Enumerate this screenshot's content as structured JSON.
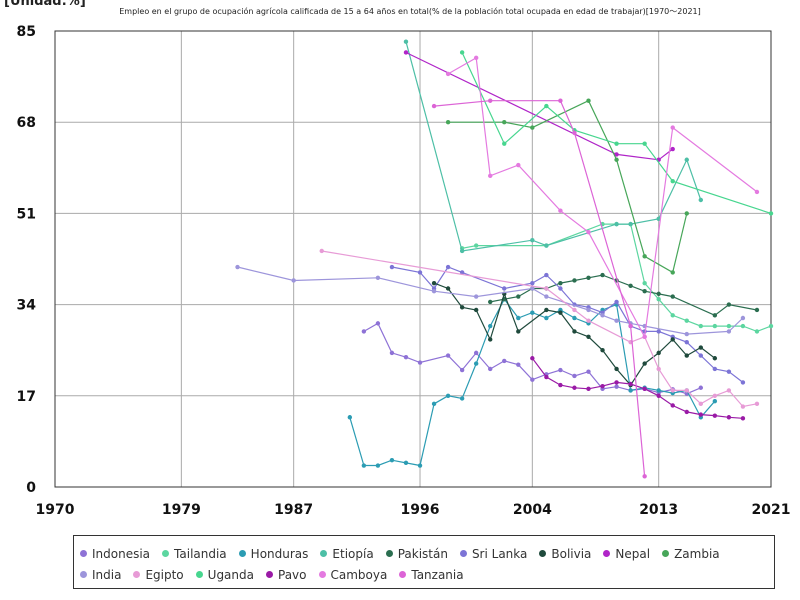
{
  "unit_label": "[Unidad:%]",
  "chart_data": {
    "type": "line",
    "title": "Empleo en el grupo de ocupación agrícola calificada de 15 a 64 años en total(% de la población total ocupada en edad de trabajar)[1970～2021]",
    "xlim": [
      1970,
      2021
    ],
    "ylim": [
      0,
      85
    ],
    "x_ticks": [
      "1970",
      "1979",
      "1987",
      "1996",
      "2004",
      "2013",
      "2021"
    ],
    "y_ticks": [
      "0",
      "17",
      "34",
      "51",
      "68",
      "85"
    ],
    "legend_position": "bottom",
    "grid": true,
    "series": [
      {
        "name": "Indonesia",
        "color": "#8e72d6",
        "points": [
          [
            1992,
            29
          ],
          [
            1993,
            30.5
          ],
          [
            1994,
            25
          ],
          [
            1995,
            24.2
          ],
          [
            1996,
            23.2
          ],
          [
            1998,
            24.5
          ],
          [
            1999,
            21.8
          ],
          [
            2000,
            25
          ],
          [
            2001,
            22
          ],
          [
            2002,
            23.5
          ],
          [
            2003,
            22.8
          ],
          [
            2004,
            20
          ],
          [
            2005,
            21
          ],
          [
            2006,
            21.8
          ],
          [
            2007,
            20.7
          ],
          [
            2008,
            21.5
          ],
          [
            2009,
            18.3
          ],
          [
            2010,
            18.7
          ],
          [
            2011,
            18
          ],
          [
            2012,
            18.3
          ],
          [
            2013,
            17.6
          ],
          [
            2014,
            18.2
          ],
          [
            2015,
            17.4
          ],
          [
            2016,
            18.5
          ]
        ]
      },
      {
        "name": "Tailandia",
        "color": "#5cd6a0",
        "points": [
          [
            1999,
            44.5
          ],
          [
            2000,
            45
          ],
          [
            2005,
            45
          ],
          [
            2009,
            49
          ],
          [
            2010,
            49
          ],
          [
            2011,
            49
          ],
          [
            2012,
            38
          ],
          [
            2013,
            35
          ],
          [
            2014,
            32
          ],
          [
            2015,
            31
          ],
          [
            2016,
            30
          ],
          [
            2017,
            30
          ],
          [
            2018,
            30
          ],
          [
            2019,
            30
          ],
          [
            2020,
            29
          ],
          [
            2021,
            30
          ]
        ]
      },
      {
        "name": "Honduras",
        "color": "#2b9cb3",
        "points": [
          [
            1991,
            13
          ],
          [
            1992,
            4
          ],
          [
            1993,
            4
          ],
          [
            1994,
            5
          ],
          [
            1995,
            4.5
          ],
          [
            1996,
            4
          ],
          [
            1997,
            15.5
          ],
          [
            1998,
            17
          ],
          [
            1999,
            16.5
          ],
          [
            2000,
            23
          ],
          [
            2001,
            30
          ],
          [
            2002,
            35
          ],
          [
            2003,
            31.5
          ],
          [
            2004,
            32.5
          ],
          [
            2005,
            31.5
          ],
          [
            2006,
            33
          ],
          [
            2007,
            31.5
          ],
          [
            2008,
            30.5
          ],
          [
            2009,
            33
          ],
          [
            2010,
            34
          ],
          [
            2011,
            18
          ],
          [
            2012,
            18.5
          ],
          [
            2013,
            18
          ],
          [
            2014,
            17.5
          ],
          [
            2015,
            18
          ],
          [
            2016,
            13
          ],
          [
            2017,
            16
          ]
        ]
      },
      {
        "name": "Etiopía",
        "color": "#4dbfa6",
        "points": [
          [
            1995,
            83
          ],
          [
            1999,
            44
          ],
          [
            2004,
            46
          ],
          [
            2005,
            45
          ],
          [
            2010,
            49
          ],
          [
            2011,
            49
          ],
          [
            2013,
            50
          ],
          [
            2015,
            61
          ],
          [
            2016,
            53.5
          ]
        ]
      },
      {
        "name": "Pakistán",
        "color": "#2b6e50",
        "points": [
          [
            2001,
            34.5
          ],
          [
            2002,
            35
          ],
          [
            2003,
            35.5
          ],
          [
            2004,
            37
          ],
          [
            2005,
            37
          ],
          [
            2006,
            38
          ],
          [
            2007,
            38.5
          ],
          [
            2008,
            39
          ],
          [
            2009,
            39.5
          ],
          [
            2010,
            38.5
          ],
          [
            2011,
            37.5
          ],
          [
            2012,
            36.5
          ],
          [
            2013,
            36
          ],
          [
            2014,
            35.5
          ],
          [
            2017,
            32
          ],
          [
            2018,
            34
          ],
          [
            2020,
            33
          ]
        ]
      },
      {
        "name": "Sri Lanka",
        "color": "#7c74d6",
        "points": [
          [
            1994,
            41
          ],
          [
            1996,
            40
          ],
          [
            1997,
            37
          ],
          [
            1998,
            41
          ],
          [
            1999,
            40
          ],
          [
            2002,
            37
          ],
          [
            2004,
            38
          ],
          [
            2005,
            39.5
          ],
          [
            2006,
            37
          ],
          [
            2007,
            34
          ],
          [
            2008,
            33.5
          ],
          [
            2009,
            32.5
          ],
          [
            2010,
            34.5
          ],
          [
            2011,
            30
          ],
          [
            2012,
            29
          ],
          [
            2013,
            29
          ],
          [
            2014,
            28
          ],
          [
            2015,
            27
          ],
          [
            2016,
            24.5
          ],
          [
            2017,
            22
          ],
          [
            2018,
            21.5
          ],
          [
            2019,
            19.5
          ]
        ]
      },
      {
        "name": "Bolivia",
        "color": "#1f4a3c",
        "points": [
          [
            1997,
            38
          ],
          [
            1998,
            37
          ],
          [
            1999,
            33.5
          ],
          [
            2000,
            33
          ],
          [
            2001,
            27.5
          ],
          [
            2002,
            36
          ],
          [
            2003,
            29
          ],
          [
            2005,
            33
          ],
          [
            2006,
            32.5
          ],
          [
            2007,
            29
          ],
          [
            2008,
            28
          ],
          [
            2009,
            25.5
          ],
          [
            2010,
            22
          ],
          [
            2011,
            19
          ],
          [
            2012,
            23
          ],
          [
            2013,
            25
          ],
          [
            2014,
            27.5
          ],
          [
            2015,
            24.5
          ],
          [
            2016,
            26
          ],
          [
            2017,
            24
          ]
        ]
      },
      {
        "name": "Nepal",
        "color": "#b025c8",
        "points": [
          [
            1995,
            81
          ],
          [
            2010,
            62
          ],
          [
            2013,
            61
          ],
          [
            2014,
            63
          ]
        ]
      },
      {
        "name": "Zambia",
        "color": "#47a659",
        "points": [
          [
            1998,
            68
          ],
          [
            2002,
            68
          ],
          [
            2004,
            67
          ],
          [
            2008,
            72
          ],
          [
            2010,
            61
          ],
          [
            2012,
            43
          ],
          [
            2014,
            40
          ],
          [
            2015,
            51
          ]
        ]
      },
      {
        "name": "India",
        "color": "#9d95db",
        "points": [
          [
            1983,
            41
          ],
          [
            1987,
            38.5
          ],
          [
            1993,
            39
          ],
          [
            1997,
            36.5
          ],
          [
            2000,
            35.5
          ],
          [
            2004,
            37
          ],
          [
            2005,
            35.5
          ],
          [
            2008,
            33
          ],
          [
            2009,
            32
          ],
          [
            2010,
            31
          ],
          [
            2011,
            30.5
          ],
          [
            2012,
            30
          ],
          [
            2015,
            28.5
          ],
          [
            2018,
            29
          ],
          [
            2019,
            31.5
          ]
        ]
      },
      {
        "name": "Egipto",
        "color": "#e79bd6",
        "points": [
          [
            1989,
            44
          ],
          [
            2005,
            37
          ],
          [
            2007,
            33
          ],
          [
            2008,
            31
          ],
          [
            2011,
            27
          ],
          [
            2012,
            28
          ],
          [
            2013,
            22
          ],
          [
            2014,
            18
          ],
          [
            2015,
            18
          ],
          [
            2016,
            15.5
          ],
          [
            2017,
            17
          ],
          [
            2018,
            18
          ],
          [
            2019,
            15
          ],
          [
            2020,
            15.5
          ]
        ]
      },
      {
        "name": "Uganda",
        "color": "#47d68f",
        "points": [
          [
            1999,
            81
          ],
          [
            2002,
            64
          ],
          [
            2005,
            71
          ],
          [
            2007,
            66.5
          ],
          [
            2010,
            64
          ],
          [
            2012,
            64
          ],
          [
            2014,
            57
          ],
          [
            2021,
            51
          ]
        ]
      },
      {
        "name": "Pavo",
        "color": "#9a1aa6",
        "points": [
          [
            2004,
            24
          ],
          [
            2005,
            20.5
          ],
          [
            2006,
            19
          ],
          [
            2007,
            18.5
          ],
          [
            2008,
            18.3
          ],
          [
            2009,
            18.8
          ],
          [
            2010,
            19.5
          ],
          [
            2011,
            19.2
          ],
          [
            2012,
            18.3
          ],
          [
            2013,
            17
          ],
          [
            2014,
            15.2
          ],
          [
            2015,
            14
          ],
          [
            2016,
            13.5
          ],
          [
            2017,
            13.3
          ],
          [
            2018,
            13
          ],
          [
            2019,
            12.8
          ]
        ]
      },
      {
        "name": "Camboya",
        "color": "#e47ae0",
        "points": [
          [
            1998,
            77
          ],
          [
            2000,
            80
          ],
          [
            2001,
            58
          ],
          [
            2003,
            60
          ],
          [
            2006,
            51.5
          ],
          [
            2008,
            47.5
          ],
          [
            2012,
            28
          ],
          [
            2014,
            67
          ],
          [
            2020,
            55
          ]
        ]
      },
      {
        "name": "Tanzania",
        "color": "#dc64d6",
        "points": [
          [
            1997,
            71
          ],
          [
            2001,
            72
          ],
          [
            2006,
            72
          ],
          [
            2007,
            66
          ],
          [
            2011,
            30
          ],
          [
            2012,
            2
          ]
        ]
      }
    ]
  }
}
